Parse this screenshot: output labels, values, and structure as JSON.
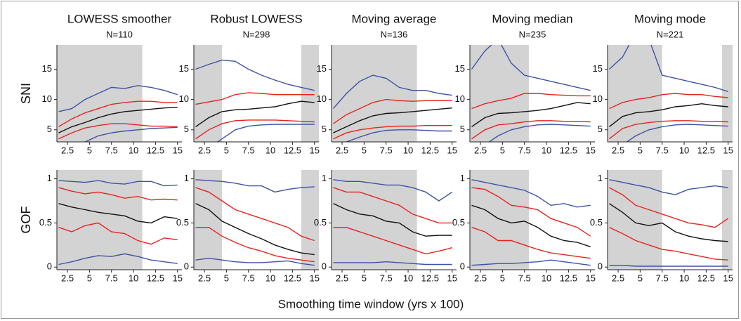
{
  "xlabel": "Smoothing time window (yrs x 100)",
  "chart_data": [
    {
      "type": "line",
      "title": "LOWESS smoother",
      "subtitle": "N=110",
      "ylabel": "SNI",
      "xlim": [
        1.3,
        15.5
      ],
      "xticks": [
        2.5,
        5,
        7.5,
        10,
        12.5,
        15
      ],
      "ylim": [
        3,
        19
      ],
      "yticks": [
        5,
        10,
        15
      ],
      "shaded": [
        [
          1.3,
          11
        ]
      ],
      "x": [
        1.5,
        3,
        4.5,
        6,
        7.5,
        9,
        10.5,
        12,
        13.5,
        15
      ],
      "series": [
        {
          "color": "#3f52a4",
          "values": [
            8,
            8.5,
            10,
            11,
            12,
            11.8,
            12.3,
            12,
            11.5,
            10.8
          ]
        },
        {
          "color": "#e8231f",
          "values": [
            5.5,
            6.8,
            7.8,
            8.5,
            9.2,
            9.5,
            9.7,
            9.7,
            9.5,
            9.5
          ]
        },
        {
          "color": "#111111",
          "values": [
            4.5,
            5.5,
            6.2,
            7,
            7.6,
            8,
            8.2,
            8.4,
            8.6,
            8.7
          ]
        },
        {
          "color": "#e8231f",
          "values": [
            3.5,
            4.5,
            5.3,
            5.7,
            6,
            6,
            5.8,
            5.6,
            5.6,
            5.5
          ]
        },
        {
          "color": "#3f52a4",
          "values": [
            1,
            2,
            3,
            4,
            4.5,
            4.8,
            5,
            5.2,
            5.3,
            5.4
          ]
        }
      ]
    },
    {
      "type": "line",
      "title": "Robust LOWESS",
      "subtitle": "N=298",
      "xlim": [
        1.3,
        15.5
      ],
      "xticks": [
        2.5,
        5,
        7.5,
        10,
        12.5,
        15
      ],
      "ylim": [
        3,
        19
      ],
      "yticks": [
        5,
        10,
        15
      ],
      "shaded": [
        [
          1.3,
          4.5
        ],
        [
          13.5,
          15.5
        ]
      ],
      "x": [
        1.5,
        3,
        4.5,
        6,
        7.5,
        9,
        10.5,
        12,
        13.5,
        15
      ],
      "series": [
        {
          "color": "#3f52a4",
          "values": [
            15,
            15.8,
            16.5,
            16.3,
            15,
            14,
            13.2,
            12.5,
            12,
            11.5
          ]
        },
        {
          "color": "#e8231f",
          "values": [
            9.2,
            9.6,
            10,
            10.8,
            11.1,
            11,
            10.8,
            10.8,
            10.8,
            10.8
          ]
        },
        {
          "color": "#111111",
          "values": [
            5.5,
            7,
            8,
            8.3,
            8.4,
            8.6,
            8.8,
            9.3,
            9.7,
            9.5
          ]
        },
        {
          "color": "#e8231f",
          "values": [
            3.5,
            5,
            6,
            6.5,
            6.6,
            6.6,
            6.6,
            6.5,
            6.4,
            6.3
          ]
        },
        {
          "color": "#3f52a4",
          "values": [
            1,
            2,
            3.5,
            5,
            5.6,
            5.8,
            5.9,
            5.9,
            5.9,
            5.9
          ]
        }
      ]
    },
    {
      "type": "line",
      "title": "Moving average",
      "subtitle": "N=136",
      "xlim": [
        1.3,
        15.5
      ],
      "xticks": [
        2.5,
        5,
        7.5,
        10,
        12.5,
        15
      ],
      "ylim": [
        3,
        19
      ],
      "yticks": [
        5,
        10,
        15
      ],
      "shaded": [
        [
          1.3,
          11
        ]
      ],
      "x": [
        1.5,
        3,
        4.5,
        6,
        7.5,
        9,
        10.5,
        12,
        13.5,
        15
      ],
      "series": [
        {
          "color": "#3f52a4",
          "values": [
            8.5,
            11,
            13,
            14,
            13.5,
            12,
            11.5,
            11.5,
            11,
            10.7
          ]
        },
        {
          "color": "#e8231f",
          "values": [
            6,
            7.5,
            8.5,
            9.5,
            10,
            9.8,
            9.7,
            9.8,
            9.8,
            9.8
          ]
        },
        {
          "color": "#111111",
          "values": [
            4.5,
            5.5,
            6.5,
            7.3,
            7.7,
            7.8,
            8,
            8.2,
            8.4,
            8.6
          ]
        },
        {
          "color": "#e8231f",
          "values": [
            3.5,
            4.5,
            5,
            5.3,
            5.5,
            5.6,
            5.6,
            5.7,
            5.7,
            5.7
          ]
        },
        {
          "color": "#3f52a4",
          "values": [
            2.5,
            3,
            3.8,
            4.5,
            4.9,
            5,
            5,
            4.9,
            4.8,
            4.8
          ]
        }
      ]
    },
    {
      "type": "line",
      "title": "Moving median",
      "subtitle": "N=235",
      "xlim": [
        1.3,
        15.5
      ],
      "xticks": [
        2.5,
        5,
        7.5,
        10,
        12.5,
        15
      ],
      "ylim": [
        3,
        19
      ],
      "yticks": [
        5,
        10,
        15
      ],
      "shaded": [
        [
          1.3,
          8
        ]
      ],
      "x": [
        1.5,
        3,
        4.5,
        6,
        7.5,
        9,
        10.5,
        12,
        13.5,
        15
      ],
      "series": [
        {
          "color": "#3f52a4",
          "values": [
            15,
            18,
            20,
            16,
            14,
            13.5,
            13,
            12.5,
            12,
            11.5
          ]
        },
        {
          "color": "#e8231f",
          "values": [
            8.5,
            9.3,
            9.8,
            10.2,
            11,
            11,
            10.8,
            10.7,
            10.6,
            10.6
          ]
        },
        {
          "color": "#111111",
          "values": [
            5.5,
            7,
            7.7,
            7.8,
            8,
            8.2,
            8.5,
            9,
            9.5,
            9.3
          ]
        },
        {
          "color": "#e8231f",
          "values": [
            3.5,
            5,
            5.8,
            6,
            6.3,
            6.5,
            6.5,
            6.4,
            6.4,
            6.3
          ]
        },
        {
          "color": "#3f52a4",
          "values": [
            1,
            2.5,
            4,
            5,
            5.5,
            5.8,
            5.9,
            5.8,
            5.7,
            5.6
          ]
        }
      ]
    },
    {
      "type": "line",
      "title": "Moving mode",
      "subtitle": "N=221",
      "xlim": [
        1.3,
        15.5
      ],
      "xticks": [
        2.5,
        5,
        7.5,
        10,
        12.5,
        15
      ],
      "ylim": [
        3,
        19
      ],
      "yticks": [
        5,
        10,
        15
      ],
      "shaded": [
        [
          1.3,
          7.5
        ],
        [
          14.3,
          15.5
        ]
      ],
      "x": [
        1.5,
        3,
        4.5,
        6,
        7.5,
        9,
        10.5,
        12,
        13.5,
        15
      ],
      "series": [
        {
          "color": "#3f52a4",
          "values": [
            15,
            17,
            21,
            20,
            14,
            13.5,
            13,
            12.5,
            12,
            11.3
          ]
        },
        {
          "color": "#e8231f",
          "values": [
            8.5,
            9.5,
            10,
            10.3,
            10.8,
            11,
            10.8,
            10.8,
            10.5,
            10.3
          ]
        },
        {
          "color": "#111111",
          "values": [
            5.5,
            7.2,
            7.8,
            8,
            8.3,
            8.8,
            9,
            9.3,
            9,
            8.8
          ]
        },
        {
          "color": "#e8231f",
          "values": [
            3.5,
            5.2,
            5.9,
            6.2,
            6.4,
            6.5,
            6.5,
            6.4,
            6.4,
            6.3
          ]
        },
        {
          "color": "#3f52a4",
          "values": [
            1,
            2.5,
            4,
            5,
            5.5,
            5.8,
            5.9,
            5.8,
            5.7,
            5.6
          ]
        }
      ]
    },
    {
      "type": "line",
      "ylabel": "GOF",
      "xlim": [
        1.3,
        15.5
      ],
      "xticks": [
        2.5,
        5,
        7.5,
        10,
        12.5,
        15
      ],
      "ylim": [
        -0.03,
        1.1
      ],
      "yticks": [
        0,
        0.5,
        1
      ],
      "shaded": [
        [
          1.3,
          11
        ]
      ],
      "x": [
        1.5,
        3,
        4.5,
        6,
        7.5,
        9,
        10.5,
        12,
        13.5,
        15
      ],
      "series": [
        {
          "color": "#3f52a4",
          "values": [
            0.98,
            0.97,
            0.96,
            0.98,
            0.95,
            0.94,
            0.97,
            0.97,
            0.92,
            0.93
          ]
        },
        {
          "color": "#e8231f",
          "values": [
            0.9,
            0.86,
            0.83,
            0.85,
            0.82,
            0.78,
            0.8,
            0.76,
            0.77,
            0.76
          ]
        },
        {
          "color": "#111111",
          "values": [
            0.72,
            0.68,
            0.65,
            0.62,
            0.6,
            0.58,
            0.52,
            0.5,
            0.57,
            0.55
          ]
        },
        {
          "color": "#e8231f",
          "values": [
            0.45,
            0.4,
            0.47,
            0.5,
            0.4,
            0.38,
            0.3,
            0.26,
            0.33,
            0.31
          ]
        },
        {
          "color": "#3f52a4",
          "values": [
            0.03,
            0.06,
            0.1,
            0.13,
            0.12,
            0.15,
            0.12,
            0.08,
            0.06,
            0.04
          ]
        }
      ]
    },
    {
      "type": "line",
      "xlim": [
        1.3,
        15.5
      ],
      "xticks": [
        2.5,
        5,
        7.5,
        10,
        12.5,
        15
      ],
      "ylim": [
        -0.03,
        1.1
      ],
      "yticks": [
        0,
        0.5,
        1
      ],
      "shaded": [
        [
          1.3,
          4.5
        ],
        [
          13.5,
          15.5
        ]
      ],
      "x": [
        1.5,
        3,
        4.5,
        6,
        7.5,
        9,
        10.5,
        12,
        13.5,
        15
      ],
      "series": [
        {
          "color": "#3f52a4",
          "values": [
            0.99,
            0.98,
            0.97,
            0.95,
            0.92,
            0.92,
            0.85,
            0.88,
            0.9,
            0.91
          ]
        },
        {
          "color": "#e8231f",
          "values": [
            0.9,
            0.85,
            0.75,
            0.65,
            0.6,
            0.55,
            0.5,
            0.45,
            0.35,
            0.3
          ]
        },
        {
          "color": "#111111",
          "values": [
            0.72,
            0.65,
            0.52,
            0.45,
            0.38,
            0.32,
            0.25,
            0.2,
            0.16,
            0.14
          ]
        },
        {
          "color": "#e8231f",
          "values": [
            0.45,
            0.45,
            0.35,
            0.28,
            0.22,
            0.18,
            0.13,
            0.1,
            0.08,
            0.06
          ]
        },
        {
          "color": "#3f52a4",
          "values": [
            0.08,
            0.1,
            0.08,
            0.06,
            0.05,
            0.05,
            0.06,
            0.07,
            0.04,
            0.02
          ]
        }
      ]
    },
    {
      "type": "line",
      "xlim": [
        1.3,
        15.5
      ],
      "xticks": [
        2.5,
        5,
        7.5,
        10,
        12.5,
        15
      ],
      "ylim": [
        -0.03,
        1.1
      ],
      "yticks": [
        0,
        0.5,
        1
      ],
      "shaded": [
        [
          1.3,
          11
        ]
      ],
      "x": [
        1.5,
        3,
        4.5,
        6,
        7.5,
        9,
        10.5,
        12,
        13.5,
        15
      ],
      "series": [
        {
          "color": "#3f52a4",
          "values": [
            0.99,
            0.97,
            0.97,
            0.95,
            0.93,
            0.93,
            0.9,
            0.85,
            0.75,
            0.85
          ]
        },
        {
          "color": "#e8231f",
          "values": [
            0.9,
            0.85,
            0.85,
            0.8,
            0.75,
            0.7,
            0.6,
            0.55,
            0.5,
            0.5
          ]
        },
        {
          "color": "#111111",
          "values": [
            0.72,
            0.65,
            0.6,
            0.58,
            0.52,
            0.5,
            0.4,
            0.35,
            0.36,
            0.36
          ]
        },
        {
          "color": "#e8231f",
          "values": [
            0.45,
            0.45,
            0.4,
            0.35,
            0.3,
            0.25,
            0.2,
            0.15,
            0.18,
            0.22
          ]
        },
        {
          "color": "#3f52a4",
          "values": [
            0.05,
            0.05,
            0.05,
            0.05,
            0.06,
            0.05,
            0.04,
            0.03,
            0.03,
            0.03
          ]
        }
      ]
    },
    {
      "type": "line",
      "xlim": [
        1.3,
        15.5
      ],
      "xticks": [
        2.5,
        5,
        7.5,
        10,
        12.5,
        15
      ],
      "ylim": [
        -0.03,
        1.1
      ],
      "yticks": [
        0,
        0.5,
        1
      ],
      "shaded": [
        [
          1.3,
          8
        ]
      ],
      "x": [
        1.5,
        3,
        4.5,
        6,
        7.5,
        9,
        10.5,
        12,
        13.5,
        15
      ],
      "series": [
        {
          "color": "#3f52a4",
          "values": [
            0.99,
            0.96,
            0.93,
            0.9,
            0.87,
            0.8,
            0.7,
            0.72,
            0.68,
            0.7
          ]
        },
        {
          "color": "#e8231f",
          "values": [
            0.9,
            0.88,
            0.8,
            0.7,
            0.68,
            0.65,
            0.55,
            0.5,
            0.45,
            0.35
          ]
        },
        {
          "color": "#111111",
          "values": [
            0.7,
            0.65,
            0.55,
            0.5,
            0.52,
            0.45,
            0.35,
            0.3,
            0.28,
            0.23
          ]
        },
        {
          "color": "#e8231f",
          "values": [
            0.45,
            0.4,
            0.3,
            0.3,
            0.25,
            0.2,
            0.16,
            0.14,
            0.12,
            0.1
          ]
        },
        {
          "color": "#3f52a4",
          "values": [
            0.02,
            0.03,
            0.04,
            0.04,
            0.05,
            0.06,
            0.08,
            0.06,
            0.04,
            0.02
          ]
        }
      ]
    },
    {
      "type": "line",
      "xlim": [
        1.3,
        15.5
      ],
      "xticks": [
        2.5,
        5,
        7.5,
        10,
        12.5,
        15
      ],
      "ylim": [
        -0.03,
        1.1
      ],
      "yticks": [
        0,
        0.5,
        1
      ],
      "shaded": [
        [
          1.3,
          7.5
        ],
        [
          14.3,
          15.5
        ]
      ],
      "x": [
        1.5,
        3,
        4.5,
        6,
        7.5,
        9,
        10.5,
        12,
        13.5,
        15
      ],
      "series": [
        {
          "color": "#3f52a4",
          "values": [
            0.99,
            0.96,
            0.93,
            0.9,
            0.85,
            0.82,
            0.88,
            0.9,
            0.92,
            0.9
          ]
        },
        {
          "color": "#e8231f",
          "values": [
            0.9,
            0.82,
            0.7,
            0.65,
            0.6,
            0.55,
            0.5,
            0.48,
            0.45,
            0.55
          ]
        },
        {
          "color": "#111111",
          "values": [
            0.72,
            0.62,
            0.5,
            0.47,
            0.5,
            0.4,
            0.35,
            0.32,
            0.3,
            0.29
          ]
        },
        {
          "color": "#e8231f",
          "values": [
            0.45,
            0.38,
            0.3,
            0.25,
            0.2,
            0.18,
            0.15,
            0.12,
            0.09,
            0.08
          ]
        },
        {
          "color": "#3f52a4",
          "values": [
            0.02,
            0.02,
            0.01,
            0.01,
            0.01,
            0.01,
            0.01,
            0.01,
            0.01,
            0.01
          ]
        }
      ]
    }
  ]
}
